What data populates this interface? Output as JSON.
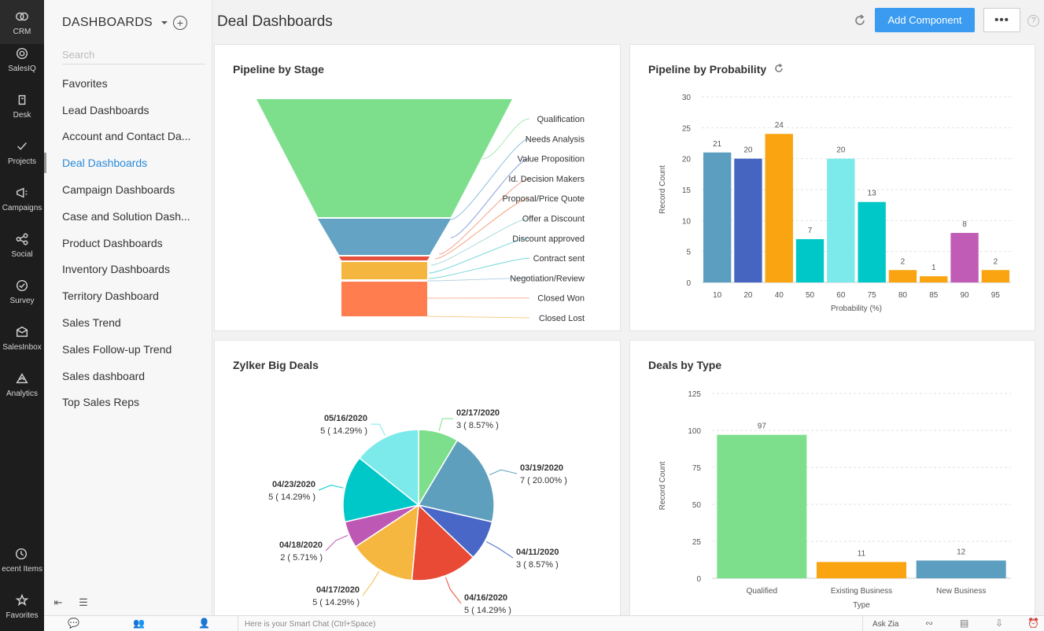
{
  "rail": {
    "items": [
      {
        "label": "CRM",
        "icon": "crm-icon"
      },
      {
        "label": "SalesIQ",
        "icon": "salesiq-icon"
      },
      {
        "label": "Desk",
        "icon": "desk-icon"
      },
      {
        "label": "Projects",
        "icon": "projects-icon"
      },
      {
        "label": "Campaigns",
        "icon": "campaigns-icon"
      },
      {
        "label": "Social",
        "icon": "social-icon"
      },
      {
        "label": "Survey",
        "icon": "survey-icon"
      },
      {
        "label": "SalesInbox",
        "icon": "salesinbox-icon"
      },
      {
        "label": "Analytics",
        "icon": "analytics-icon"
      }
    ],
    "bottom": [
      {
        "label": "ecent Items",
        "icon": "recent-items-icon"
      },
      {
        "label": "Favorites",
        "icon": "favorites-icon"
      }
    ]
  },
  "sidebar": {
    "title": "DASHBOARDS",
    "search_placeholder": "Search",
    "items": [
      {
        "label": "Favorites",
        "active": false
      },
      {
        "label": "Lead Dashboards",
        "active": false
      },
      {
        "label": "Account and Contact Da...",
        "active": false
      },
      {
        "label": "Deal Dashboards",
        "active": true
      },
      {
        "label": "Campaign Dashboards",
        "active": false
      },
      {
        "label": "Case and Solution Dash...",
        "active": false
      },
      {
        "label": "Product Dashboards",
        "active": false
      },
      {
        "label": "Inventory Dashboards",
        "active": false
      },
      {
        "label": "Territory Dashboard",
        "active": false
      },
      {
        "label": "Sales Trend",
        "active": false
      },
      {
        "label": "Sales Follow-up Trend",
        "active": false
      },
      {
        "label": "Sales dashboard",
        "active": false
      },
      {
        "label": "Top Sales Reps",
        "active": false
      }
    ]
  },
  "header": {
    "title": "Deal Dashboards",
    "add_component": "Add Component",
    "more": "•••",
    "help": "?"
  },
  "bottombar": {
    "smart_chat": "Here is your Smart Chat (Ctrl+Space)",
    "ask_zia": "Ask Zia"
  },
  "colors": {
    "accent": "#3a9bf0",
    "funnel_qualification": "#7ddf8c",
    "funnel_needs_analysis": "#64a3c3",
    "funnel_value_proposition": "#e7503d",
    "funnel_negotiation": "#f4b63f",
    "funnel_closed_won": "#ff7d4f"
  },
  "chart_data": [
    {
      "id": "pipeline_by_stage",
      "type": "funnel",
      "title": "Pipeline by Stage",
      "stages": [
        "Qualification",
        "Needs Analysis",
        "Value Proposition",
        "Id. Decision Makers",
        "Proposal/Price Quote",
        "Offer a Discount",
        "Discount approved",
        "Contract sent",
        "Negotiation/Review",
        "Closed Won",
        "Closed Lost"
      ],
      "segment_colors": [
        "#7ddf8c",
        "#64a3c3",
        "#e7503d",
        "#f4b63f",
        "#ff7d4f"
      ]
    },
    {
      "id": "pipeline_by_probability",
      "type": "bar",
      "title": "Pipeline by Probability",
      "xlabel": "Probability (%)",
      "ylabel": "Record Count",
      "ylim": [
        0,
        30
      ],
      "yticks": [
        0,
        5,
        10,
        15,
        20,
        25,
        30
      ],
      "categories": [
        "10",
        "20",
        "40",
        "50",
        "60",
        "75",
        "80",
        "85",
        "90",
        "95"
      ],
      "values": [
        21,
        20,
        24,
        7,
        20,
        13,
        2,
        1,
        8,
        2
      ],
      "bar_colors": [
        "#5b9ebf",
        "#4565c0",
        "#f9a410",
        "#00c8c8",
        "#7ceaea",
        "#00c8c8",
        "#f9a410",
        "#f9a410",
        "#c05cb5",
        "#f9a410"
      ]
    },
    {
      "id": "zylker_big_deals",
      "type": "pie",
      "title": "Zylker Big Deals",
      "slices": [
        {
          "label": "02/17/2020",
          "value": 3,
          "detail": "3 ( 8.57% )",
          "color": "#7ddf8c"
        },
        {
          "label": "03/19/2020",
          "value": 7,
          "detail": "7 ( 20.00% )",
          "color": "#5f9fbe"
        },
        {
          "label": "04/11/2020",
          "value": 3,
          "detail": "3 ( 8.57% )",
          "color": "#4867c6"
        },
        {
          "label": "04/16/2020",
          "value": 5,
          "detail": "5 ( 14.29% )",
          "color": "#e84a36"
        },
        {
          "label": "04/17/2020",
          "value": 5,
          "detail": "5 ( 14.29% )",
          "color": "#f5b73f"
        },
        {
          "label": "04/18/2020",
          "value": 2,
          "detail": "2 ( 5.71% )",
          "color": "#bd59b5"
        },
        {
          "label": "04/23/2020",
          "value": 5,
          "detail": "5 ( 14.29% )",
          "color": "#00c8c8"
        },
        {
          "label": "05/16/2020",
          "value": 5,
          "detail": "5 ( 14.29% )",
          "color": "#7ceaea"
        }
      ]
    },
    {
      "id": "deals_by_type",
      "type": "bar",
      "title": "Deals by Type",
      "xlabel": "Type",
      "ylabel": "Record Count",
      "ylim": [
        0,
        125
      ],
      "yticks": [
        0,
        25,
        50,
        75,
        100,
        125
      ],
      "categories": [
        "Qualified",
        "Existing Business",
        "New Business"
      ],
      "values": [
        97,
        11,
        12
      ],
      "bar_colors": [
        "#7ddf8c",
        "#f9a410",
        "#5b9ebf"
      ]
    }
  ]
}
